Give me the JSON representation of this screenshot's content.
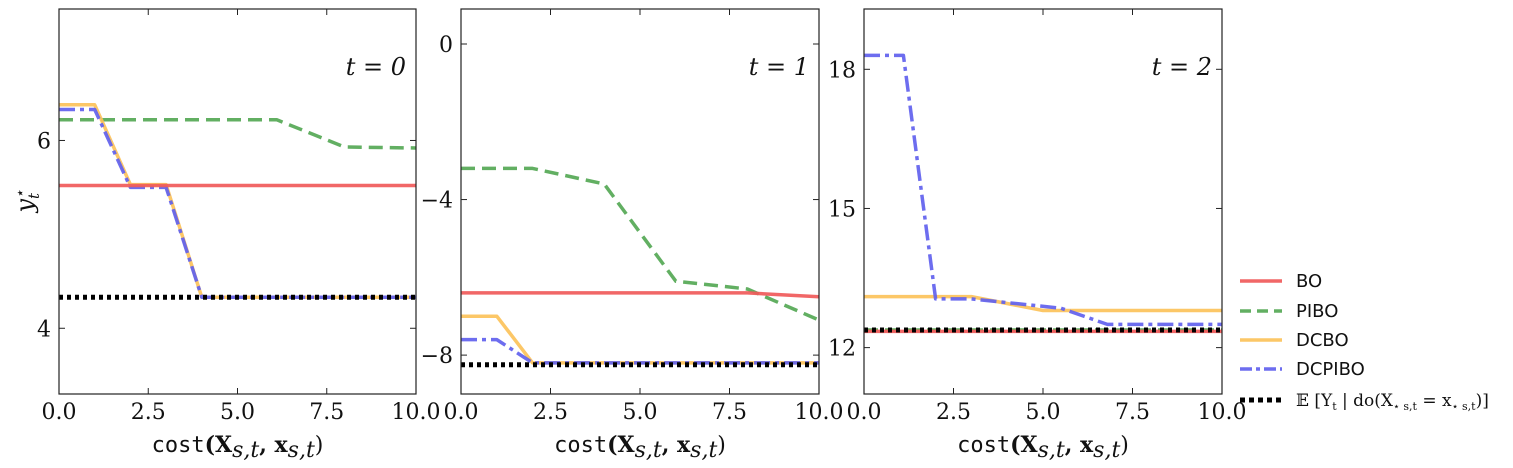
{
  "figure": {
    "ylabel": "y",
    "ylabel_sub": "t",
    "ylabel_sup": "⋆",
    "xlabel_fn": "cost",
    "xlabel_args": "(X",
    "xlabel_args_sub": "s,t",
    "xlabel_args_tail": ", x",
    "xlabel_args_sub2": "s,t",
    "xlabel_close": ")"
  },
  "legend": {
    "placement": "lower-right",
    "entries": [
      {
        "label": "BO",
        "color": "#f05a5a",
        "style": "solid"
      },
      {
        "label": "PIBO",
        "color": "#55a855",
        "style": "dashed"
      },
      {
        "label": "DCBO",
        "color": "#fcc25a",
        "style": "solid"
      },
      {
        "label": "DCPIBO",
        "color": "#6161ee",
        "style": "dashdot"
      },
      {
        "label": "𝔼 [Y",
        "sub": "t",
        "tail": " | do(X",
        "sub2": "⋆ s,t",
        "tail2": " = x",
        "sub3": "⋆ s,t",
        "close": ")]",
        "color": "#000000",
        "style": "dotted"
      }
    ]
  },
  "chart_data": [
    {
      "type": "line",
      "annotation": "t = 0",
      "xlim": [
        0,
        10
      ],
      "ylim": [
        3.3,
        7.4
      ],
      "xticks": [
        0,
        2.5,
        5,
        7.5,
        10
      ],
      "xtick_labels": [
        "0.0",
        "2.5",
        "5.0",
        "7.5",
        "10.0"
      ],
      "yticks": [
        4,
        6
      ],
      "ytick_labels": [
        "4",
        "6"
      ],
      "series": [
        {
          "name": "BO",
          "x": [
            0,
            10
          ],
          "y": [
            5.52,
            5.52
          ]
        },
        {
          "name": "PIBO",
          "x": [
            0,
            6.1,
            8.0,
            10
          ],
          "y": [
            6.22,
            6.22,
            5.93,
            5.92
          ]
        },
        {
          "name": "DCBO",
          "x": [
            0,
            1.0,
            2.0,
            3.0,
            4.0,
            10
          ],
          "y": [
            6.38,
            6.38,
            5.53,
            5.53,
            4.33,
            4.33
          ]
        },
        {
          "name": "DCPIBO",
          "x": [
            0,
            1.0,
            2.0,
            3.0,
            4.0,
            10
          ],
          "y": [
            6.33,
            6.33,
            5.5,
            5.5,
            4.33,
            4.33
          ]
        },
        {
          "name": "𝔼 [Y t | do(X⋆ s,t = x⋆ s,t)]",
          "x": [
            0,
            10
          ],
          "y": [
            4.33,
            4.33
          ]
        }
      ]
    },
    {
      "type": "line",
      "annotation": "t = 1",
      "xlim": [
        0,
        10
      ],
      "ylim": [
        -9.0,
        0.9
      ],
      "xticks": [
        0,
        2.5,
        5,
        7.5,
        10
      ],
      "xtick_labels": [
        "0.0",
        "2.5",
        "5.0",
        "7.5",
        "10.0"
      ],
      "yticks": [
        0,
        -4,
        -8
      ],
      "ytick_labels": [
        "0",
        "−4",
        "−8"
      ],
      "series": [
        {
          "name": "BO",
          "x": [
            0,
            8.0,
            10
          ],
          "y": [
            -6.4,
            -6.4,
            -6.5
          ]
        },
        {
          "name": "PIBO",
          "x": [
            0,
            2.0,
            4.0,
            6.0,
            8.0,
            10
          ],
          "y": [
            -3.2,
            -3.2,
            -3.6,
            -6.1,
            -6.3,
            -7.1
          ]
        },
        {
          "name": "DCBO",
          "x": [
            0,
            1.0,
            2.0,
            10
          ],
          "y": [
            -7.0,
            -7.0,
            -8.2,
            -8.2
          ]
        },
        {
          "name": "DCPIBO",
          "x": [
            0,
            1.0,
            2.0,
            10
          ],
          "y": [
            -7.6,
            -7.6,
            -8.2,
            -8.2
          ]
        },
        {
          "name": "𝔼 [Y t | do(X⋆ s,t = x⋆ s,t)]",
          "x": [
            0,
            10
          ],
          "y": [
            -8.25,
            -8.25
          ]
        }
      ]
    },
    {
      "type": "line",
      "annotation": "t = 2",
      "xlim": [
        0,
        10
      ],
      "ylim": [
        11.0,
        19.3
      ],
      "xticks": [
        0,
        2.5,
        5,
        7.5,
        10
      ],
      "xtick_labels": [
        "0.0",
        "2.5",
        "5.0",
        "7.5",
        "10.0"
      ],
      "yticks": [
        12,
        15,
        18
      ],
      "ytick_labels": [
        "12",
        "15",
        "18"
      ],
      "series": [
        {
          "name": "BO",
          "x": [
            0,
            10
          ],
          "y": [
            12.35,
            12.35
          ]
        },
        {
          "name": "PIBO",
          "x": [
            0,
            10
          ],
          "y": [
            12.38,
            12.38
          ]
        },
        {
          "name": "DCBO",
          "x": [
            0,
            3.0,
            5.0,
            10
          ],
          "y": [
            13.1,
            13.1,
            12.8,
            12.8
          ]
        },
        {
          "name": "DCPIBO",
          "x": [
            0,
            1.1,
            2.0,
            3.0,
            5.5,
            6.8,
            10
          ],
          "y": [
            18.3,
            18.3,
            13.05,
            13.05,
            12.85,
            12.5,
            12.5
          ]
        },
        {
          "name": "𝔼 [Y t | do(X⋆ s,t = x⋆ s,t)]",
          "x": [
            0,
            10
          ],
          "y": [
            12.38,
            12.38
          ]
        }
      ]
    }
  ]
}
